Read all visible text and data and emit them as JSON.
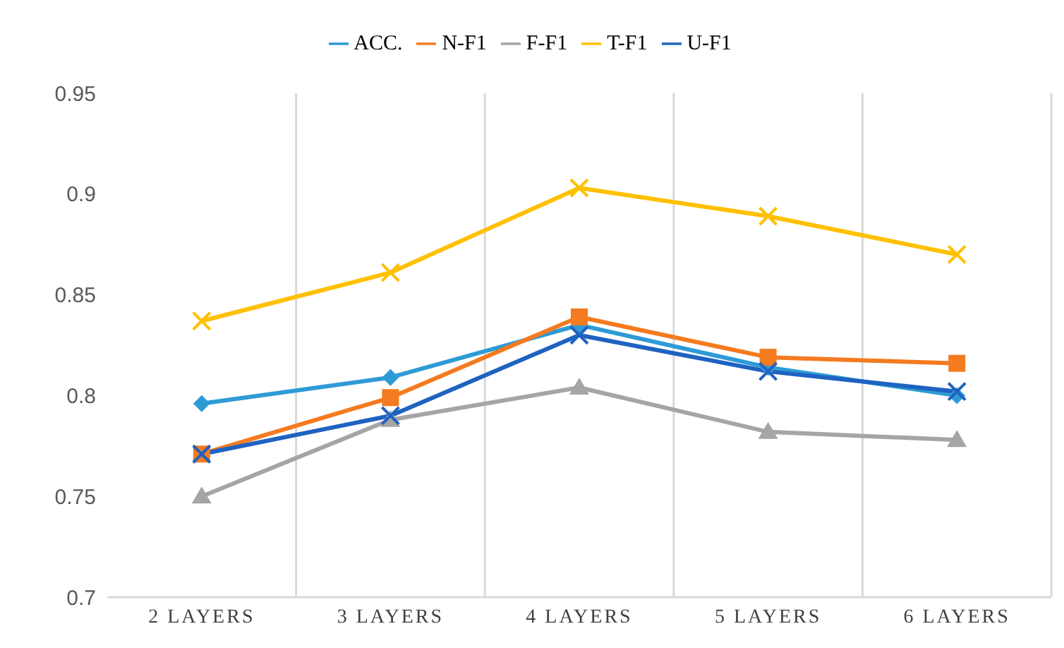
{
  "chart_data": {
    "type": "line",
    "categories": [
      "2 LAYERS",
      "3 LAYERS",
      "4 LAYERS",
      "5 LAYERS",
      "6 LAYERS"
    ],
    "series": [
      {
        "name": "ACC.",
        "color": "#2e9bd6",
        "marker": "diamond",
        "values": [
          0.796,
          0.809,
          0.835,
          0.814,
          0.8
        ]
      },
      {
        "name": "N-F1",
        "color": "#f47b20",
        "marker": "square",
        "values": [
          0.771,
          0.799,
          0.839,
          0.819,
          0.816
        ]
      },
      {
        "name": "F-F1",
        "color": "#a5a5a5",
        "marker": "triangle",
        "values": [
          0.75,
          0.788,
          0.804,
          0.782,
          0.778
        ]
      },
      {
        "name": "T-F1",
        "color": "#ffc000",
        "marker": "cross",
        "values": [
          0.837,
          0.861,
          0.903,
          0.889,
          0.87
        ]
      },
      {
        "name": "U-F1",
        "color": "#1f62c0",
        "marker": "cross",
        "values": [
          0.771,
          0.79,
          0.83,
          0.812,
          0.802
        ]
      }
    ],
    "ylim": [
      0.7,
      0.95
    ],
    "yticks": [
      0.7,
      0.75,
      0.8,
      0.85,
      0.9,
      0.95
    ],
    "grid": "x",
    "legend": "top"
  }
}
